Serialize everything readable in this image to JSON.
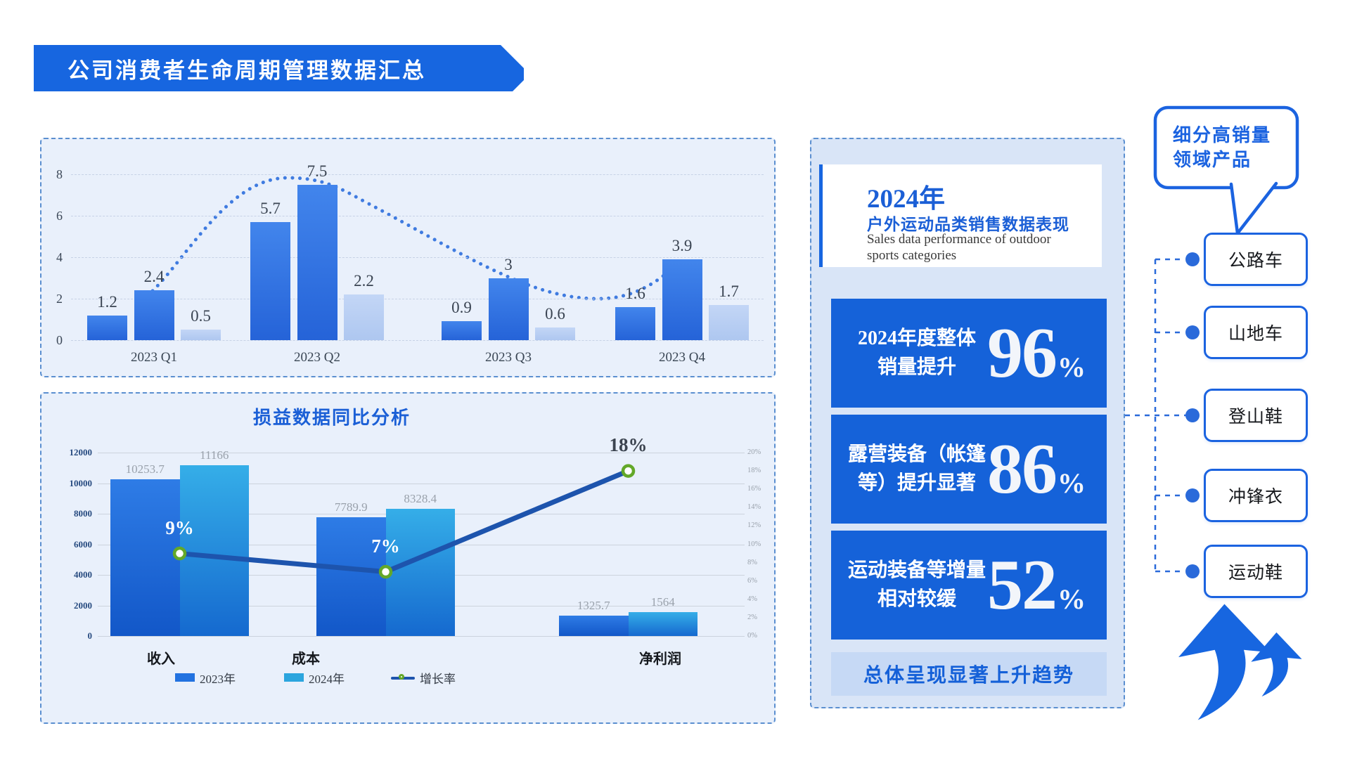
{
  "banner": {
    "title": "公司消费者生命周期管理数据汇总"
  },
  "chart_data": [
    {
      "type": "bar",
      "title": "",
      "categories": [
        "2023 Q1",
        "2023 Q2",
        "2023 Q3",
        "2023 Q4"
      ],
      "series": [
        {
          "name": "bar-series-1",
          "values": [
            1.2,
            5.7,
            0.9,
            1.6
          ]
        },
        {
          "name": "bar-series-2",
          "values": [
            2.4,
            7.5,
            3,
            3.9
          ]
        },
        {
          "name": "bar-series-3",
          "values": [
            0.5,
            2.2,
            0.6,
            1.7
          ]
        }
      ],
      "dotted_trend_follows": "bar-series-2",
      "yticks": [
        0,
        2,
        4,
        6,
        8
      ],
      "ylim": [
        0,
        8
      ],
      "grid": true,
      "legend": "none"
    },
    {
      "type": "bar+line",
      "title": "损益数据同比分析",
      "categories": [
        "收入",
        "成本",
        "净利润"
      ],
      "series": [
        {
          "name": "2023年",
          "type": "bar",
          "values": [
            10253.7,
            7789.9,
            1325.7
          ]
        },
        {
          "name": "2024年",
          "type": "bar",
          "values": [
            11166,
            8328.4,
            1564
          ]
        },
        {
          "name": "增长率",
          "type": "line",
          "values_percent": [
            9,
            7,
            18
          ]
        }
      ],
      "left_axis": {
        "ticks": [
          0,
          2000,
          4000,
          6000,
          8000,
          10000,
          12000
        ],
        "lim": [
          0,
          12000
        ]
      },
      "right_axis": {
        "ticks": [
          "0%",
          "2%",
          "4%",
          "6%",
          "8%",
          "10%",
          "12%",
          "14%",
          "16%",
          "18%",
          "20%"
        ],
        "lim_percent": [
          0,
          20
        ]
      },
      "legend": [
        "2023年",
        "2024年",
        "增长率"
      ],
      "grid": true
    }
  ],
  "right_panel": {
    "header": {
      "year": "2024年",
      "subtitle": "户外运动品类销售数据表现",
      "subtitle_en_line1": "Sales data performance of outdoor",
      "subtitle_en_line2": "sports categories"
    },
    "stats": [
      {
        "label_line1": "2024年度整体",
        "label_line2": "销量提升",
        "value": "96",
        "unit": "%"
      },
      {
        "label_line1": "露营装备（帐篷",
        "label_line2": "等）提升显著",
        "value": "86",
        "unit": "%"
      },
      {
        "label_line1": "运动装备等增量",
        "label_line2": "相对较缓",
        "value": "52",
        "unit": "%"
      }
    ],
    "footer": "总体呈现显著上升趋势"
  },
  "callout": {
    "line1": "细分高销量",
    "line2": "领域产品"
  },
  "products": [
    "公路车",
    "山地车",
    "登山鞋",
    "冲锋衣",
    "运动鞋"
  ],
  "colors": {
    "brand_blue": "#1766E0",
    "card_blue": "#1562D9",
    "accent_border": "#1B63E0",
    "connector_blue": "#2A6ADA",
    "growth_line": "#1D54AD",
    "marker_ring": "#63A829",
    "bar_2023": "#2272E0",
    "bar_2024": "#2BA5DE",
    "light_bar": "#BAD0F4",
    "dotted_trend": "#3F7BE0"
  }
}
